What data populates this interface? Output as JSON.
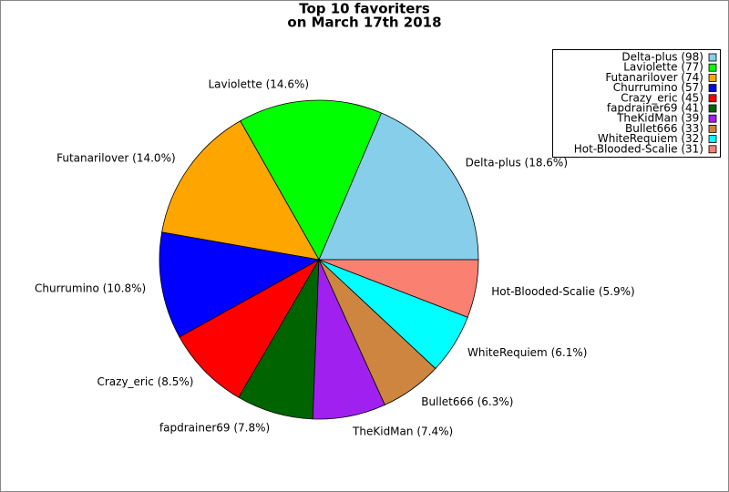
{
  "chart_data": {
    "type": "pie",
    "title": [
      "Top 10 favoriters",
      "on March 17th 2018"
    ],
    "categories": [
      "Delta-plus",
      "Laviolette",
      "Futanarilover",
      "Churrumino",
      "Crazy_eric",
      "fapdrainer69",
      "TheKidMan",
      "Bullet666",
      "WhiteRequiem",
      "Hot-Blooded-Scalie"
    ],
    "values": [
      98,
      77,
      74,
      57,
      45,
      41,
      39,
      33,
      32,
      31
    ],
    "value_labels": [
      "Delta-plus (98)",
      "Laviolette (77)",
      "Futanarilover (74)",
      "Churrumino (57)",
      "Crazy_eric (45)",
      "fapdrainer69 (41)",
      "TheKidMan (39)",
      "Bullet666 (33)",
      "WhiteRequiem (32)",
      "Hot-Blooded-Scalie (31)"
    ],
    "slice_labels": [
      "Delta-plus (18.6%)",
      "Laviolette (14.6%)",
      "Futanarilover (14.0%)",
      "Churrumino (10.8%)",
      "Crazy_eric (8.5%)",
      "fapdrainer69 (7.8%)",
      "TheKidMan (7.4%)",
      "Bullet666 (6.3%)",
      "WhiteRequiem (6.1%)",
      "Hot-Blooded-Scalie (5.9%)"
    ],
    "colors": [
      "#87ceeb",
      "#00ff00",
      "#ffa500",
      "#0000ff",
      "#ff0000",
      "#006400",
      "#a020f0",
      "#cd853f",
      "#00ffff",
      "#fa8072"
    ],
    "legend": "upper right"
  }
}
